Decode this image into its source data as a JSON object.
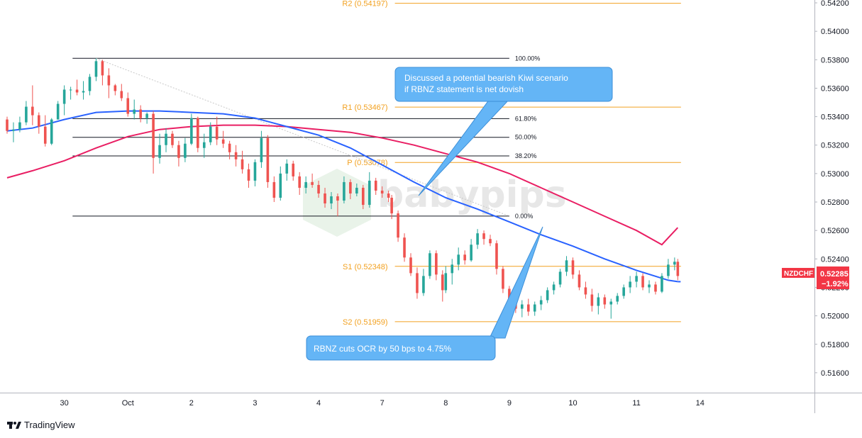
{
  "chart_data": {
    "type": "candlestick",
    "symbol": "NZDCHF",
    "last_price": "0.52285",
    "change_pct": "−1.92%",
    "y_axis": {
      "range": [
        0.5146,
        0.5422
      ],
      "ticks": [
        "0.54200",
        "0.54000",
        "0.53800",
        "0.53600",
        "0.53400",
        "0.53200",
        "0.53000",
        "0.52800",
        "0.52600",
        "0.52400",
        "0.52200",
        "0.52000",
        "0.51800",
        "0.51600"
      ]
    },
    "x_axis": {
      "ticks": [
        {
          "label": "30",
          "x": 0
        },
        {
          "label": "Oct",
          "x": 1
        },
        {
          "label": "2",
          "x": 2
        },
        {
          "label": "3",
          "x": 3
        },
        {
          "label": "4",
          "x": 4
        },
        {
          "label": "7",
          "x": 5
        },
        {
          "label": "8",
          "x": 6
        },
        {
          "label": "9",
          "x": 7
        },
        {
          "label": "10",
          "x": 8
        },
        {
          "label": "11",
          "x": 9
        },
        {
          "label": "14",
          "x": 10
        }
      ],
      "range": [
        -0.9,
        11.8
      ]
    },
    "pivots": [
      {
        "label": "R2 (0.54197)",
        "value": 0.54197,
        "x_start": 5.2,
        "x_end": 9.7
      },
      {
        "label": "R1 (0.53467)",
        "value": 0.53467,
        "x_start": 5.2,
        "x_end": 9.7
      },
      {
        "label": "P (0.53078)",
        "value": 0.53078,
        "x_start": 5.2,
        "x_end": 9.7
      },
      {
        "label": "S1 (0.52348)",
        "value": 0.52348,
        "x_start": 5.2,
        "x_end": 9.7
      },
      {
        "label": "S2 (0.51959)",
        "value": 0.51959,
        "x_start": 5.2,
        "x_end": 9.7
      }
    ],
    "fibonacci": {
      "x_start": 0.13,
      "x_end": 7.0,
      "levels": [
        {
          "label": "100.00%",
          "value": 0.5381
        },
        {
          "label": "61.80%",
          "value": 0.53386
        },
        {
          "label": "50.00%",
          "value": 0.53255
        },
        {
          "label": "38.20%",
          "value": 0.53124
        },
        {
          "label": "0.00%",
          "value": 0.52701
        }
      ]
    },
    "trendline": {
      "x": [
        0.5,
        7.0
      ],
      "y": [
        0.5381,
        0.52701
      ]
    },
    "ma_blue": {
      "color": "#2962ff",
      "points": [
        [
          -0.9,
          0.533
        ],
        [
          -0.5,
          0.5332
        ],
        [
          0,
          0.5338
        ],
        [
          0.5,
          0.5343
        ],
        [
          1,
          0.5344
        ],
        [
          1.5,
          0.5344
        ],
        [
          2,
          0.5343
        ],
        [
          2.5,
          0.5342
        ],
        [
          3,
          0.5339
        ],
        [
          3.5,
          0.5333
        ],
        [
          4,
          0.5327
        ],
        [
          4.5,
          0.5318
        ],
        [
          5,
          0.5306
        ],
        [
          5.5,
          0.5294
        ],
        [
          6,
          0.5283
        ],
        [
          6.5,
          0.5275
        ],
        [
          7,
          0.5266
        ],
        [
          7.5,
          0.5257
        ],
        [
          8,
          0.5249
        ],
        [
          8.5,
          0.524
        ],
        [
          9,
          0.5232
        ],
        [
          9.5,
          0.5225
        ],
        [
          9.65,
          0.5224
        ]
      ]
    },
    "ma_pink": {
      "color": "#e91e63",
      "points": [
        [
          -0.9,
          0.5297
        ],
        [
          -0.5,
          0.5302
        ],
        [
          0,
          0.5309
        ],
        [
          0.5,
          0.5318
        ],
        [
          1,
          0.5326
        ],
        [
          1.5,
          0.5331
        ],
        [
          2,
          0.5333
        ],
        [
          2.5,
          0.5334
        ],
        [
          3,
          0.5334
        ],
        [
          3.5,
          0.5333
        ],
        [
          4,
          0.5331
        ],
        [
          4.5,
          0.5329
        ],
        [
          5,
          0.5325
        ],
        [
          5.5,
          0.532
        ],
        [
          6,
          0.5314
        ],
        [
          6.5,
          0.5308
        ],
        [
          7,
          0.53
        ],
        [
          7.5,
          0.529
        ],
        [
          8,
          0.528
        ],
        [
          8.5,
          0.527
        ],
        [
          9,
          0.526
        ],
        [
          9.4,
          0.525
        ],
        [
          9.65,
          0.5262
        ]
      ]
    },
    "candles": [
      [
        -0.9,
        0.5338,
        0.534,
        0.5328,
        0.533
      ],
      [
        -0.8,
        0.533,
        0.5336,
        0.5322,
        0.5331
      ],
      [
        -0.7,
        0.5331,
        0.534,
        0.5329,
        0.5336
      ],
      [
        -0.6,
        0.5336,
        0.5351,
        0.5334,
        0.5347
      ],
      [
        -0.5,
        0.5347,
        0.5362,
        0.5334,
        0.5341
      ],
      [
        -0.4,
        0.5341,
        0.5343,
        0.5328,
        0.5333
      ],
      [
        -0.3,
        0.5333,
        0.5341,
        0.5319,
        0.5321
      ],
      [
        -0.2,
        0.5321,
        0.5339,
        0.532,
        0.5338
      ],
      [
        -0.1,
        0.5338,
        0.5351,
        0.5338,
        0.5349
      ],
      [
        0,
        0.5349,
        0.5362,
        0.5341,
        0.5359
      ],
      [
        0.1,
        0.5359,
        0.5361,
        0.5352,
        0.5359
      ],
      [
        0.2,
        0.5359,
        0.5366,
        0.5355,
        0.5357
      ],
      [
        0.3,
        0.5357,
        0.5365,
        0.5352,
        0.5358
      ],
      [
        0.4,
        0.5358,
        0.537,
        0.5355,
        0.5368
      ],
      [
        0.5,
        0.5368,
        0.5381,
        0.5365,
        0.5379
      ],
      [
        0.6,
        0.5379,
        0.538,
        0.5362,
        0.5369
      ],
      [
        0.7,
        0.5369,
        0.5374,
        0.5353,
        0.5362
      ],
      [
        0.8,
        0.5362,
        0.5363,
        0.5355,
        0.5358
      ],
      [
        0.9,
        0.5358,
        0.5363,
        0.5351,
        0.5353
      ],
      [
        1,
        0.5353,
        0.5357,
        0.534,
        0.5342
      ],
      [
        1.1,
        0.5342,
        0.5352,
        0.5338,
        0.5345
      ],
      [
        1.2,
        0.5345,
        0.5348,
        0.5336,
        0.5339
      ],
      [
        1.3,
        0.5339,
        0.5343,
        0.5335,
        0.5342
      ],
      [
        1.4,
        0.5342,
        0.5344,
        0.53,
        0.5311
      ],
      [
        1.5,
        0.5311,
        0.5328,
        0.5307,
        0.532
      ],
      [
        1.6,
        0.532,
        0.5332,
        0.5315,
        0.5328
      ],
      [
        1.7,
        0.5328,
        0.533,
        0.5318,
        0.532
      ],
      [
        1.8,
        0.532,
        0.5323,
        0.5305,
        0.5311
      ],
      [
        1.9,
        0.5311,
        0.5325,
        0.5308,
        0.5321
      ],
      [
        2,
        0.5321,
        0.5342,
        0.532,
        0.5339
      ],
      [
        2.1,
        0.5339,
        0.534,
        0.5315,
        0.5318
      ],
      [
        2.2,
        0.5318,
        0.5328,
        0.5311,
        0.5322
      ],
      [
        2.3,
        0.5322,
        0.5336,
        0.532,
        0.5333
      ],
      [
        2.4,
        0.5333,
        0.534,
        0.532,
        0.5324
      ],
      [
        2.5,
        0.5324,
        0.533,
        0.5318,
        0.5321
      ],
      [
        2.6,
        0.5321,
        0.5323,
        0.531,
        0.5315
      ],
      [
        2.7,
        0.5315,
        0.532,
        0.5305,
        0.531
      ],
      [
        2.8,
        0.531,
        0.5316,
        0.53,
        0.5303
      ],
      [
        2.9,
        0.5303,
        0.5307,
        0.529,
        0.5295
      ],
      [
        3,
        0.5295,
        0.531,
        0.5291,
        0.5308
      ],
      [
        3.1,
        0.5308,
        0.533,
        0.5304,
        0.5325
      ],
      [
        3.2,
        0.5325,
        0.5327,
        0.529,
        0.5294
      ],
      [
        3.3,
        0.5294,
        0.5298,
        0.528,
        0.5283
      ],
      [
        3.4,
        0.5283,
        0.5305,
        0.5281,
        0.53
      ],
      [
        3.5,
        0.53,
        0.531,
        0.5295,
        0.5307
      ],
      [
        3.6,
        0.5307,
        0.5309,
        0.5295,
        0.5298
      ],
      [
        3.7,
        0.5298,
        0.5301,
        0.5285,
        0.529
      ],
      [
        3.8,
        0.529,
        0.5298,
        0.5286,
        0.5294
      ],
      [
        3.9,
        0.5294,
        0.53,
        0.529,
        0.5292
      ],
      [
        4,
        0.5292,
        0.5295,
        0.5283,
        0.5286
      ],
      [
        4.1,
        0.5286,
        0.529,
        0.5276,
        0.5279
      ],
      [
        4.2,
        0.5279,
        0.5287,
        0.5275,
        0.5284
      ],
      [
        4.3,
        0.5284,
        0.5286,
        0.527,
        0.5281
      ],
      [
        4.4,
        0.5281,
        0.5298,
        0.5279,
        0.5294
      ],
      [
        4.5,
        0.5294,
        0.5296,
        0.5282,
        0.5286
      ],
      [
        4.6,
        0.5286,
        0.5293,
        0.5284,
        0.529
      ],
      [
        4.7,
        0.529,
        0.5292,
        0.5275,
        0.5278
      ],
      [
        4.8,
        0.5278,
        0.5301,
        0.5276,
        0.5295
      ],
      [
        4.9,
        0.5295,
        0.5297,
        0.5285,
        0.5288
      ],
      [
        5,
        0.5288,
        0.5291,
        0.5283,
        0.5286
      ],
      [
        5.1,
        0.5286,
        0.5288,
        0.528,
        0.5283
      ],
      [
        5.15,
        0.5283,
        0.5285,
        0.5268,
        0.5272
      ],
      [
        5.25,
        0.5272,
        0.5274,
        0.5252,
        0.5255
      ],
      [
        5.35,
        0.5255,
        0.5258,
        0.5238,
        0.5241
      ],
      [
        5.45,
        0.5241,
        0.5244,
        0.5228,
        0.523
      ],
      [
        5.55,
        0.523,
        0.5234,
        0.5212,
        0.5216
      ],
      [
        5.65,
        0.5216,
        0.5233,
        0.5214,
        0.5228
      ],
      [
        5.75,
        0.5228,
        0.5246,
        0.5226,
        0.5244
      ],
      [
        5.85,
        0.5244,
        0.5246,
        0.5225,
        0.5229
      ],
      [
        5.95,
        0.5229,
        0.5232,
        0.521,
        0.5218
      ],
      [
        6,
        0.5218,
        0.5235,
        0.5216,
        0.523
      ],
      [
        6.1,
        0.523,
        0.524,
        0.5222,
        0.5236
      ],
      [
        6.2,
        0.5236,
        0.5248,
        0.5232,
        0.5243
      ],
      [
        6.3,
        0.5243,
        0.5246,
        0.5236,
        0.5239
      ],
      [
        6.4,
        0.5239,
        0.5254,
        0.5238,
        0.525
      ],
      [
        6.5,
        0.525,
        0.5261,
        0.5247,
        0.5258
      ],
      [
        6.6,
        0.5258,
        0.526,
        0.525,
        0.5254
      ],
      [
        6.7,
        0.5254,
        0.5257,
        0.5249,
        0.5251
      ],
      [
        6.8,
        0.5251,
        0.5253,
        0.5229,
        0.5233
      ],
      [
        6.9,
        0.5233,
        0.5235,
        0.5216,
        0.5219
      ],
      [
        7,
        0.5219,
        0.5221,
        0.5208,
        0.5211
      ],
      [
        7.1,
        0.5211,
        0.5214,
        0.5202,
        0.5205
      ],
      [
        7.2,
        0.5205,
        0.5211,
        0.5199,
        0.5208
      ],
      [
        7.3,
        0.5208,
        0.5212,
        0.52,
        0.5203
      ],
      [
        7.4,
        0.5203,
        0.521,
        0.52,
        0.5208
      ],
      [
        7.5,
        0.5208,
        0.5214,
        0.5204,
        0.5211
      ],
      [
        7.6,
        0.5211,
        0.522,
        0.5209,
        0.5218
      ],
      [
        7.7,
        0.5218,
        0.5224,
        0.5215,
        0.5222
      ],
      [
        7.8,
        0.5222,
        0.5233,
        0.522,
        0.5231
      ],
      [
        7.9,
        0.5231,
        0.5242,
        0.5228,
        0.5239
      ],
      [
        8,
        0.5239,
        0.5241,
        0.5226,
        0.5229
      ],
      [
        8.1,
        0.5229,
        0.5232,
        0.5218,
        0.522
      ],
      [
        8.2,
        0.522,
        0.5224,
        0.5212,
        0.5215
      ],
      [
        8.3,
        0.5215,
        0.5219,
        0.5203,
        0.5207
      ],
      [
        8.4,
        0.5207,
        0.5216,
        0.5201,
        0.5213
      ],
      [
        8.5,
        0.5213,
        0.5215,
        0.5205,
        0.5208
      ],
      [
        8.6,
        0.5208,
        0.5212,
        0.5198,
        0.521
      ],
      [
        8.7,
        0.521,
        0.5216,
        0.5208,
        0.5214
      ],
      [
        8.8,
        0.5214,
        0.5222,
        0.5212,
        0.522
      ],
      [
        8.9,
        0.522,
        0.5228,
        0.5216,
        0.5224
      ],
      [
        9,
        0.5224,
        0.5231,
        0.522,
        0.5228
      ],
      [
        9.1,
        0.5228,
        0.523,
        0.5218,
        0.522
      ],
      [
        9.2,
        0.522,
        0.5225,
        0.5216,
        0.5222
      ],
      [
        9.3,
        0.5222,
        0.5224,
        0.5215,
        0.5217
      ],
      [
        9.4,
        0.5217,
        0.523,
        0.5216,
        0.5228
      ],
      [
        9.5,
        0.5228,
        0.524,
        0.5226,
        0.5236
      ],
      [
        9.6,
        0.5236,
        0.5241,
        0.5232,
        0.5238
      ],
      [
        9.65,
        0.5238,
        0.524,
        0.5225,
        0.5228
      ]
    ]
  },
  "callouts": [
    {
      "lines": [
        "Discussed a potential bearish Kiwi scenario",
        "if RBNZ statement is net dovish"
      ]
    },
    {
      "lines": [
        "RBNZ cuts OCR by 50 bps to 4.75%"
      ]
    }
  ],
  "watermark": "babypips",
  "branding": {
    "name": "TradingView"
  },
  "colors": {
    "up": "#26a69a",
    "down": "#ef5350",
    "pivot": "#f2a120",
    "callout": "#64b5f6",
    "badge": "#f23645"
  }
}
